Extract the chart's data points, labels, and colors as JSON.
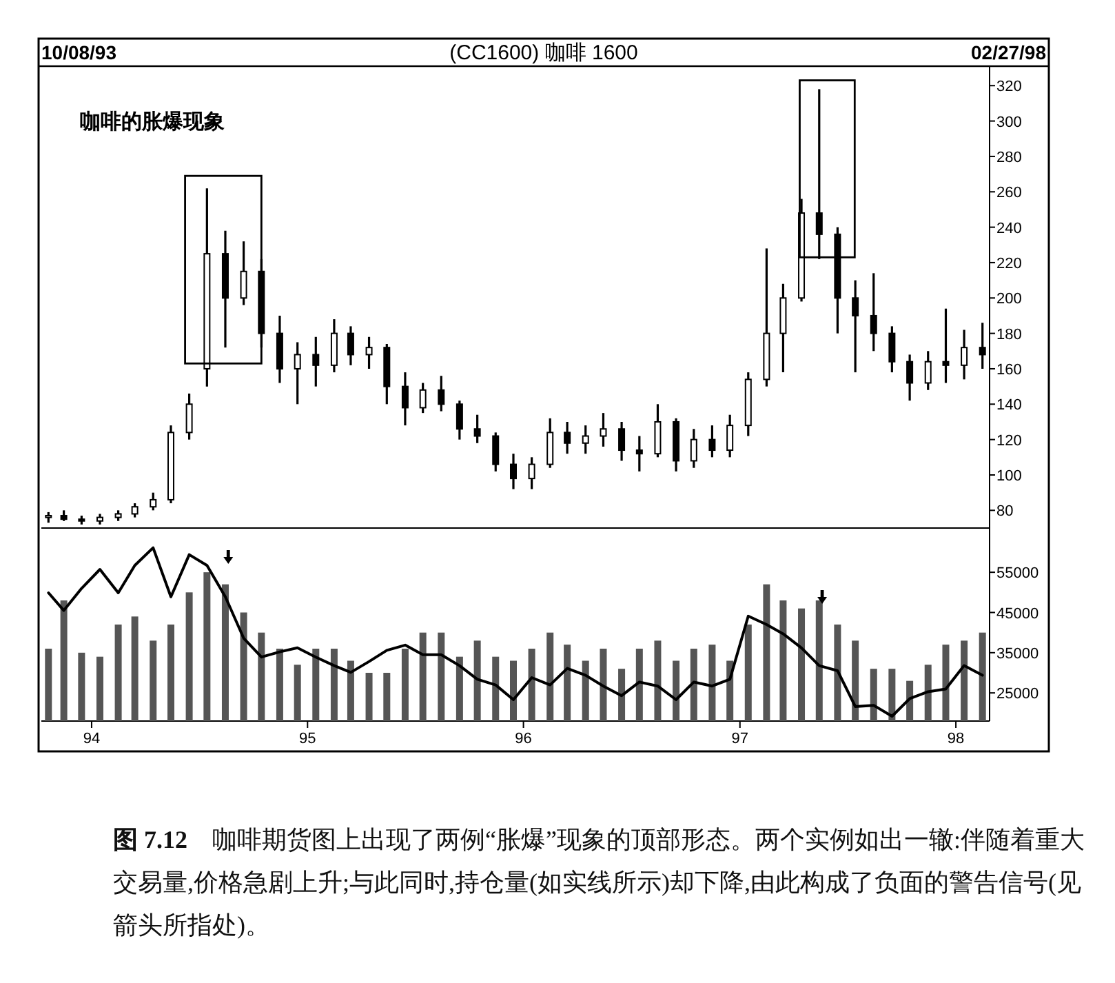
{
  "chart_data": [
    {
      "type": "candlestick",
      "title": "(CC1600) 咖啡 1600",
      "color": "#000000",
      "annotations": [
        "10/08/93",
        "02/27/98",
        "咖啡的胀爆现象"
      ],
      "xlim": [
        "1993-10-08",
        "1998-02-27"
      ],
      "ylim": [
        70,
        331
      ],
      "yticks": [
        80,
        100,
        120,
        140,
        160,
        180,
        200,
        220,
        240,
        260,
        280,
        300,
        320
      ],
      "tick_labels": "y",
      "x": [
        "1993-10-20",
        "1993-11-15",
        "1993-12-15",
        "1994-01-15",
        "1994-02-15",
        "1994-03-15",
        "1994-04-15",
        "1994-05-15",
        "1994-06-15",
        "1994-07-15",
        "1994-08-15",
        "1994-09-15",
        "1994-10-15",
        "1994-11-15",
        "1994-12-15",
        "1995-01-15",
        "1995-02-15",
        "1995-03-15",
        "1995-04-15",
        "1995-05-15",
        "1995-06-15",
        "1995-07-15",
        "1995-08-15",
        "1995-09-15",
        "1995-10-15",
        "1995-11-15",
        "1995-12-15",
        "1996-01-15",
        "1996-02-15",
        "1996-03-15",
        "1996-04-15",
        "1996-05-15",
        "1996-06-15",
        "1996-07-15",
        "1996-08-15",
        "1996-09-15",
        "1996-10-15",
        "1996-11-15",
        "1996-12-15",
        "1997-01-15",
        "1997-02-15",
        "1997-03-15",
        "1997-04-15",
        "1997-05-15",
        "1997-06-15",
        "1997-07-15",
        "1997-08-15",
        "1997-09-15",
        "1997-10-15",
        "1997-11-15",
        "1997-12-15",
        "1998-01-15",
        "1998-02-15"
      ],
      "ohlc": [
        [
          76,
          79,
          73,
          77
        ],
        [
          77,
          80,
          74,
          75
        ],
        [
          75,
          77,
          72,
          74
        ],
        [
          74,
          78,
          72,
          76
        ],
        [
          76,
          80,
          74,
          78
        ],
        [
          78,
          84,
          76,
          82
        ],
        [
          82,
          90,
          80,
          86
        ],
        [
          86,
          128,
          84,
          124
        ],
        [
          124,
          146,
          120,
          140
        ],
        [
          160,
          262,
          150,
          225
        ],
        [
          225,
          238,
          172,
          200
        ],
        [
          200,
          232,
          196,
          215
        ],
        [
          215,
          222,
          172,
          180
        ],
        [
          180,
          190,
          152,
          160
        ],
        [
          160,
          175,
          140,
          168
        ],
        [
          168,
          178,
          150,
          162
        ],
        [
          162,
          188,
          158,
          180
        ],
        [
          180,
          184,
          162,
          168
        ],
        [
          168,
          178,
          160,
          172
        ],
        [
          172,
          174,
          140,
          150
        ],
        [
          150,
          158,
          128,
          138
        ],
        [
          138,
          152,
          135,
          148
        ],
        [
          148,
          156,
          136,
          140
        ],
        [
          140,
          142,
          120,
          126
        ],
        [
          126,
          134,
          118,
          122
        ],
        [
          122,
          124,
          102,
          106
        ],
        [
          106,
          112,
          92,
          98
        ],
        [
          98,
          110,
          92,
          106
        ],
        [
          106,
          132,
          104,
          124
        ],
        [
          124,
          130,
          112,
          118
        ],
        [
          118,
          128,
          112,
          122
        ],
        [
          122,
          135,
          116,
          126
        ],
        [
          126,
          130,
          108,
          114
        ],
        [
          114,
          122,
          102,
          112
        ],
        [
          112,
          140,
          110,
          130
        ],
        [
          130,
          132,
          102,
          108
        ],
        [
          108,
          126,
          104,
          120
        ],
        [
          120,
          128,
          110,
          114
        ],
        [
          114,
          134,
          110,
          128
        ],
        [
          128,
          158,
          122,
          154
        ],
        [
          154,
          228,
          150,
          180
        ],
        [
          180,
          208,
          158,
          200
        ],
        [
          200,
          256,
          198,
          248
        ],
        [
          248,
          318,
          222,
          236
        ],
        [
          236,
          240,
          180,
          200
        ],
        [
          200,
          210,
          158,
          190
        ],
        [
          190,
          214,
          170,
          180
        ],
        [
          180,
          184,
          158,
          164
        ],
        [
          164,
          168,
          142,
          152
        ],
        [
          152,
          170,
          148,
          164
        ],
        [
          164,
          194,
          152,
          162
        ],
        [
          162,
          182,
          154,
          172
        ],
        [
          172,
          186,
          160,
          168
        ]
      ]
    },
    {
      "type": "bar",
      "annotations": [
        "**图 7.12**　咖啡期货图上出现了两例“胀爆”现象的顶部形态。两个实例如出一辙:伴随着重大交易量,价格急剧上升;与此同时,持仓量(如实线所示)却下降,由此构成了负面的警告信号(见箭头所指处)。"
      ],
      "xlim": [
        "1993-10-08",
        "1998-02-27"
      ],
      "xticks": [
        {
          "value": "1994-01-01",
          "label": "94"
        },
        {
          "value": "1995-01-01",
          "label": "95"
        },
        {
          "value": "1996-01-01",
          "label": "96"
        },
        {
          "value": "1997-01-01",
          "label": "97"
        },
        {
          "value": "1998-01-01",
          "label": "98"
        }
      ],
      "ylim": [
        18000,
        66000
      ],
      "yticks": [
        25000,
        35000,
        45000,
        55000
      ],
      "x": [
        "1993-10-20",
        "1993-11-15",
        "1993-12-15",
        "1994-01-15",
        "1994-02-15",
        "1994-03-15",
        "1994-04-15",
        "1994-05-15",
        "1994-06-15",
        "1994-07-15",
        "1994-08-15",
        "1994-09-15",
        "1994-10-15",
        "1994-11-15",
        "1994-12-15",
        "1995-01-15",
        "1995-02-15",
        "1995-03-15",
        "1995-04-15",
        "1995-05-15",
        "1995-06-15",
        "1995-07-15",
        "1995-08-15",
        "1995-09-15",
        "1995-10-15",
        "1995-11-15",
        "1995-12-15",
        "1996-01-15",
        "1996-02-15",
        "1996-03-15",
        "1996-04-15",
        "1996-05-15",
        "1996-06-15",
        "1996-07-15",
        "1996-08-15",
        "1996-09-15",
        "1996-10-15",
        "1996-11-15",
        "1996-12-15",
        "1997-01-15",
        "1997-02-15",
        "1997-03-15",
        "1997-04-15",
        "1997-05-15",
        "1997-06-15",
        "1997-07-15",
        "1997-08-15",
        "1997-09-15",
        "1997-10-15",
        "1997-11-15",
        "1997-12-15",
        "1998-01-15",
        "1998-02-15"
      ],
      "series": [
        {
          "type": "bar",
          "color": "#555555",
          "values": [
            36000,
            48000,
            35000,
            34000,
            42000,
            44000,
            38000,
            42000,
            50000,
            55000,
            52000,
            45000,
            40000,
            36000,
            32000,
            36000,
            36000,
            33000,
            30000,
            30000,
            36000,
            40000,
            40000,
            34000,
            38000,
            34000,
            33000,
            36000,
            40000,
            37000,
            33000,
            36000,
            31000,
            36000,
            38000,
            33000,
            36000,
            37000,
            33000,
            42000,
            52000,
            48000,
            46000,
            48000,
            42000,
            38000,
            31000,
            31000,
            28000,
            32000,
            37000,
            38000,
            40000
          ]
        },
        {
          "type": "line",
          "color": "#000000",
          "values": [
            49900,
            45500,
            51000,
            55700,
            49900,
            56700,
            61100,
            48900,
            59400,
            56700,
            48900,
            38600,
            33900,
            35200,
            36200,
            33900,
            31800,
            30100,
            32800,
            35600,
            36900,
            34500,
            34500,
            31800,
            28400,
            27000,
            23300,
            28800,
            27000,
            31100,
            29400,
            26700,
            24300,
            27700,
            26700,
            23300,
            27700,
            26700,
            28400,
            44100,
            42000,
            39700,
            36200,
            31800,
            30500,
            21600,
            21900,
            19200,
            23600,
            25300,
            26000,
            31800,
            29400
          ]
        }
      ]
    }
  ]
}
